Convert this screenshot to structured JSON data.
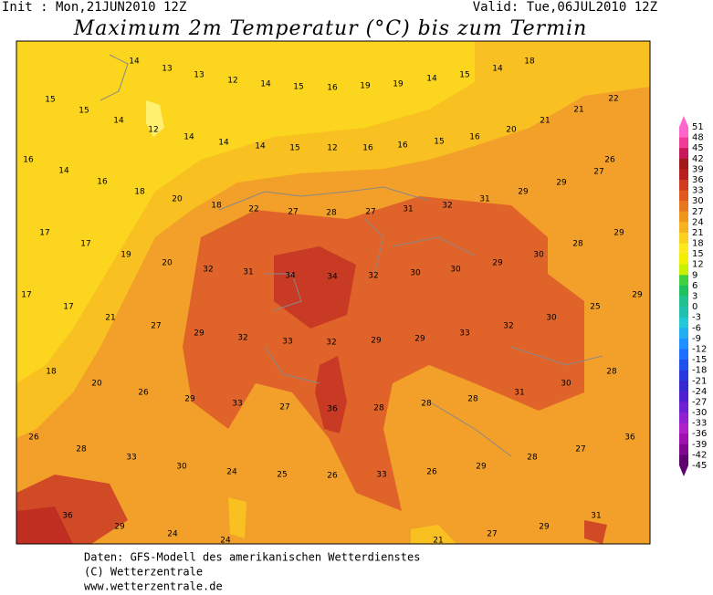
{
  "header": {
    "init": "Init : Mon,21JUN2010 12Z",
    "valid": "Valid: Tue,06JUL2010 12Z",
    "title": "Maximum 2m Temperatur (°C) bis zum Termin"
  },
  "map": {
    "labels": [
      14,
      13,
      18,
      13,
      12,
      14,
      15,
      16,
      19,
      19,
      14,
      15,
      14,
      15,
      22,
      15,
      14,
      12,
      14,
      14,
      14,
      15,
      12,
      16,
      16,
      15,
      16,
      20,
      21,
      21,
      16,
      14,
      26,
      16,
      18,
      20,
      18,
      22,
      27,
      28,
      27,
      31,
      32,
      31,
      29,
      29,
      27,
      17,
      17,
      28,
      29,
      30,
      19,
      20,
      32,
      31,
      34,
      34,
      32,
      30,
      30,
      29,
      17,
      17,
      29,
      25,
      21,
      27,
      29,
      32,
      33,
      32,
      29,
      29,
      33,
      32,
      30,
      18,
      20,
      28,
      30,
      26,
      29,
      33,
      27,
      36,
      28,
      28,
      28,
      31,
      26,
      28,
      36,
      27,
      33,
      30,
      24,
      25,
      26,
      33,
      26,
      29,
      28,
      36,
      29,
      31,
      29,
      24,
      24,
      27,
      21
    ]
  },
  "legend": {
    "levels": [
      51,
      48,
      45,
      42,
      39,
      36,
      33,
      30,
      27,
      24,
      21,
      18,
      15,
      12,
      9,
      6,
      3,
      0,
      -3,
      -6,
      -9,
      -12,
      -15,
      -18,
      -21,
      -24,
      -27,
      -30,
      -33,
      -36,
      -39,
      -42,
      -45
    ],
    "colors": [
      "#ff66cc",
      "#f03c96",
      "#c8185a",
      "#a01818",
      "#b82020",
      "#d03a1e",
      "#e05a1e",
      "#e8781e",
      "#f0961e",
      "#f5b41e",
      "#fad21e",
      "#ffe81e",
      "#f0f000",
      "#c8f000",
      "#40d040",
      "#20c060",
      "#20c090",
      "#20c0b0",
      "#20c8d8",
      "#20b0f0",
      "#1e90ff",
      "#1e6eff",
      "#1e50f0",
      "#2838e0",
      "#3828d0",
      "#5020d0",
      "#7020d0",
      "#9020d0",
      "#b020c8",
      "#a010b0",
      "#800890",
      "#600070"
    ]
  },
  "footer": {
    "lines": [
      "Daten: GFS-Modell des amerikanischen Wetterdienstes",
      "(C) Wetterzentrale",
      "www.wetterzentrale.de"
    ]
  }
}
